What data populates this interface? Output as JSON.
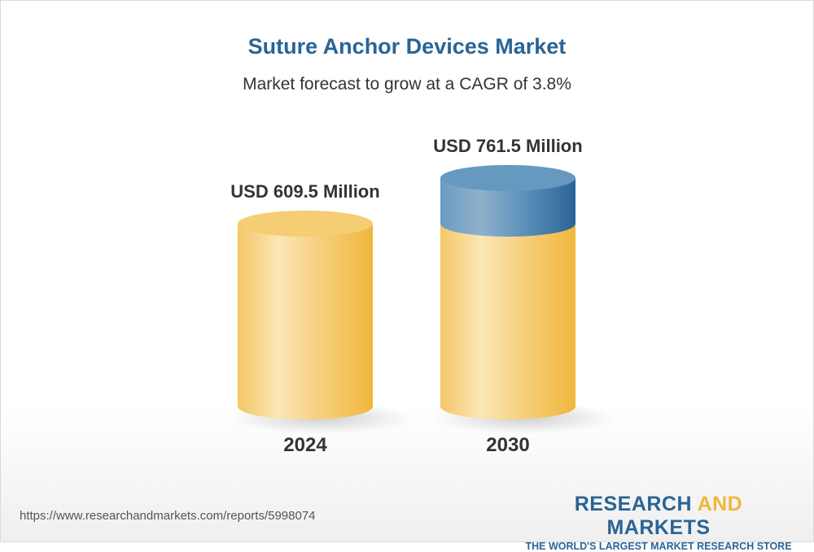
{
  "title": "Suture Anchor Devices Market",
  "subtitle": "Market forecast to grow at a CAGR of 3.8%",
  "chart_data": {
    "type": "bar",
    "style": "3d-cylinder",
    "categories": [
      "2024",
      "2030"
    ],
    "values": [
      609.5,
      761.5
    ],
    "data_labels": [
      "USD 609.5 Million",
      "USD 761.5 Million"
    ],
    "unit": "USD Million",
    "cagr_percent": 3.8,
    "colors": {
      "base": "#f2c35a",
      "growth": "#2a6496"
    }
  },
  "footer": {
    "url": "https://www.researchandmarkets.com/reports/5998074",
    "logo_part1": "RESEARCH ",
    "logo_part2": "AND",
    "logo_part3": " MARKETS",
    "tagline": "THE WORLD'S LARGEST MARKET RESEARCH STORE"
  }
}
